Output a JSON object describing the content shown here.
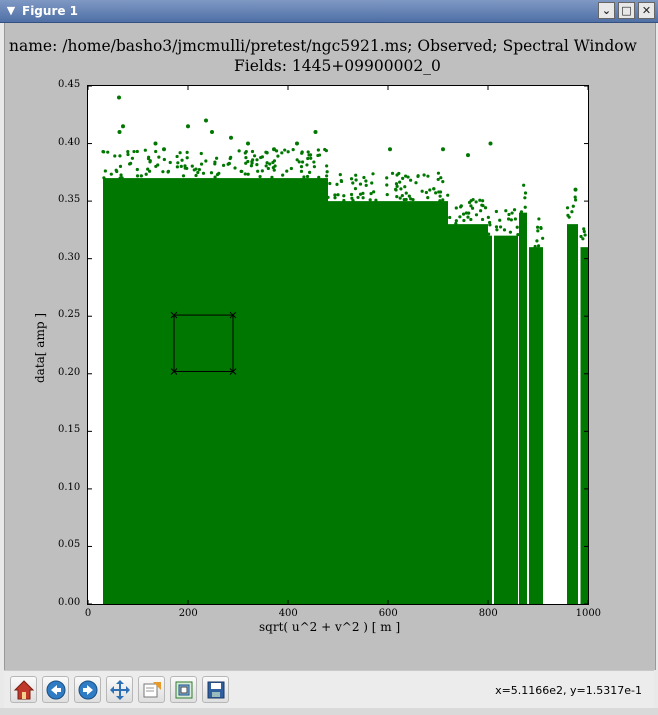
{
  "window": {
    "title": "Figure 1",
    "menu_icon": "chevron-down-icon",
    "controls": [
      "chevron-down-icon",
      "maximize-icon",
      "close-icon"
    ]
  },
  "figure": {
    "title_line1": "name: /home/basho3/jmcmulli/pretest/ngc5921.ms; Observed; Spectral Window",
    "title_line2": "Fields: 1445+09900002_0"
  },
  "chart_data": {
    "type": "scatter",
    "xlabel": "sqrt( u^2 + v^2 ) [ m ]",
    "ylabel": "data[ amp ]",
    "xlim": [
      0,
      1000
    ],
    "ylim": [
      0,
      0.45
    ],
    "x_ticks": [
      "0",
      "200",
      "400",
      "600",
      "800",
      "1000"
    ],
    "y_ticks": [
      "0.00",
      "0.05",
      "0.10",
      "0.15",
      "0.20",
      "0.25",
      "0.30",
      "0.35",
      "0.40",
      "0.45"
    ],
    "marker_color": "#007700",
    "grid": false,
    "point_bands": [
      {
        "x": [
          30,
          480
        ],
        "y_max": 0.37
      },
      {
        "x": [
          480,
          560
        ],
        "y_max": 0.35
      },
      {
        "x": [
          560,
          640
        ],
        "y_max": 0.35
      },
      {
        "x": [
          640,
          720
        ],
        "y_max": 0.35
      },
      {
        "x": [
          720,
          800
        ],
        "y_max": 0.33
      },
      {
        "x": [
          800,
          808
        ],
        "y_max": 0.32
      },
      {
        "x": [
          812,
          860
        ],
        "y_max": 0.32
      },
      {
        "x": [
          862,
          878
        ],
        "y_max": 0.34
      },
      {
        "x": [
          882,
          910
        ],
        "y_max": 0.31
      },
      {
        "x": [
          958,
          980
        ],
        "y_max": 0.33
      },
      {
        "x": [
          985,
          1000
        ],
        "y_max": 0.31
      }
    ],
    "outliers": [
      [
        62,
        0.44
      ],
      [
        70,
        0.415
      ],
      [
        63,
        0.41
      ],
      [
        135,
        0.4
      ],
      [
        152,
        0.395
      ],
      [
        200,
        0.415
      ],
      [
        236,
        0.42
      ],
      [
        248,
        0.41
      ],
      [
        286,
        0.405
      ],
      [
        320,
        0.4
      ],
      [
        372,
        0.395
      ],
      [
        418,
        0.4
      ],
      [
        455,
        0.41
      ],
      [
        604,
        0.395
      ],
      [
        710,
        0.395
      ],
      [
        760,
        0.39
      ],
      [
        805,
        0.4
      ],
      [
        975,
        0.36
      ]
    ],
    "selection_box": {
      "x": [
        172,
        290
      ],
      "y": [
        0.202,
        0.251
      ]
    }
  },
  "toolbar": {
    "buttons": [
      {
        "name": "home-button",
        "icon": "home-icon"
      },
      {
        "name": "back-button",
        "icon": "back-arrow-icon"
      },
      {
        "name": "forward-button",
        "icon": "forward-arrow-icon"
      },
      {
        "name": "pan-button",
        "icon": "pan-arrows-icon"
      },
      {
        "name": "zoom-button",
        "icon": "zoom-rect-icon"
      },
      {
        "name": "subplots-button",
        "icon": "subplots-icon"
      },
      {
        "name": "save-button",
        "icon": "save-icon"
      }
    ],
    "coords": "x=5.1166e2, y=1.5317e-1"
  }
}
